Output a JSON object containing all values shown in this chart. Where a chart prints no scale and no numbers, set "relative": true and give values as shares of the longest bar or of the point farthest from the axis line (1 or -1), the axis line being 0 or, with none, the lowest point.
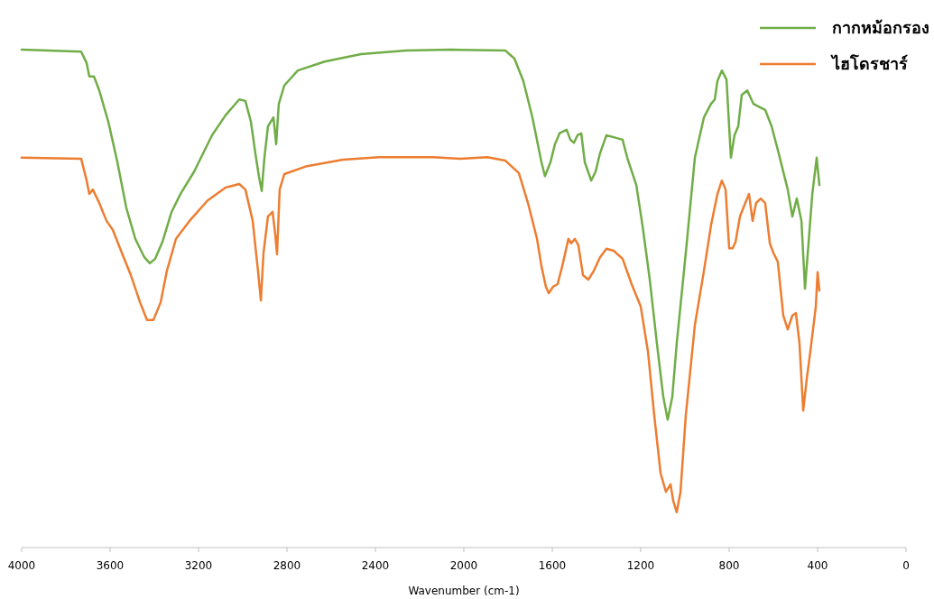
{
  "chart_data": {
    "type": "line",
    "relative": true,
    "xlabel": "Wavenumber (cm-1)",
    "xlim": [
      4000,
      0
    ],
    "xticks": [
      4000,
      3600,
      3200,
      2800,
      2400,
      2000,
      1600,
      1200,
      800,
      400,
      0
    ],
    "grid": false,
    "legend": "top right",
    "marker": "none",
    "line_style": "solid",
    "series": [
      {
        "name": "กากหม้อกรอง",
        "color": "#70ad47",
        "x": [
          4000,
          3731,
          3706,
          3694,
          3673,
          3649,
          3608,
          3567,
          3527,
          3486,
          3445,
          3420,
          3396,
          3363,
          3322,
          3282,
          3220,
          3139,
          3078,
          3016,
          2988,
          2963,
          2943,
          2927,
          2914,
          2902,
          2886,
          2861,
          2849,
          2837,
          2812,
          2751,
          2629,
          2465,
          2261,
          2057,
          1812,
          1771,
          1731,
          1690,
          1649,
          1633,
          1608,
          1588,
          1567,
          1535,
          1518,
          1502,
          1486,
          1469,
          1453,
          1424,
          1404,
          1384,
          1355,
          1322,
          1282,
          1261,
          1220,
          1192,
          1159,
          1127,
          1098,
          1078,
          1057,
          1037,
          996,
          955,
          914,
          882,
          865,
          853,
          833,
          812,
          792,
          776,
          759,
          743,
          718,
          690,
          669,
          637,
          608,
          576,
          535,
          514,
          494,
          473,
          457,
          441,
          424,
          404,
          392
        ],
        "values": [
          1.0,
          0.996,
          0.973,
          0.946,
          0.946,
          0.918,
          0.855,
          0.774,
          0.683,
          0.62,
          0.583,
          0.571,
          0.58,
          0.614,
          0.674,
          0.71,
          0.755,
          0.828,
          0.868,
          0.9,
          0.897,
          0.855,
          0.792,
          0.746,
          0.716,
          0.783,
          0.846,
          0.864,
          0.81,
          0.891,
          0.928,
          0.958,
          0.976,
          0.991,
          0.998,
          1.0,
          0.998,
          0.982,
          0.937,
          0.864,
          0.774,
          0.746,
          0.774,
          0.81,
          0.832,
          0.839,
          0.819,
          0.813,
          0.828,
          0.832,
          0.774,
          0.737,
          0.755,
          0.792,
          0.828,
          0.824,
          0.819,
          0.783,
          0.728,
          0.647,
          0.538,
          0.411,
          0.303,
          0.257,
          0.303,
          0.411,
          0.592,
          0.783,
          0.864,
          0.891,
          0.9,
          0.937,
          0.958,
          0.94,
          0.783,
          0.828,
          0.846,
          0.909,
          0.918,
          0.891,
          0.886,
          0.879,
          0.846,
          0.792,
          0.719,
          0.665,
          0.701,
          0.656,
          0.52,
          0.611,
          0.71,
          0.783,
          0.728
        ]
      },
      {
        "name": "ไฮโดรชาร์",
        "color": "#ed7d31",
        "x": [
          4000,
          3731,
          3706,
          3694,
          3678,
          3649,
          3616,
          3588,
          3547,
          3506,
          3465,
          3433,
          3404,
          3371,
          3343,
          3302,
          3241,
          3159,
          3078,
          3016,
          2988,
          2955,
          2931,
          2918,
          2906,
          2886,
          2865,
          2853,
          2845,
          2833,
          2812,
          2710,
          2547,
          2384,
          2139,
          2016,
          1894,
          1812,
          1751,
          1710,
          1669,
          1649,
          1629,
          1616,
          1596,
          1576,
          1555,
          1527,
          1514,
          1498,
          1482,
          1461,
          1437,
          1412,
          1384,
          1355,
          1322,
          1282,
          1241,
          1200,
          1167,
          1139,
          1110,
          1086,
          1065,
          1053,
          1037,
          1020,
          996,
          955,
          914,
          882,
          853,
          833,
          816,
          800,
          784,
          771,
          751,
          727,
          710,
          694,
          678,
          657,
          637,
          616,
          600,
          580,
          555,
          535,
          514,
          498,
          482,
          465,
          449,
          433,
          408,
          400,
          392
        ],
        "values": [
          0.783,
          0.781,
          0.737,
          0.71,
          0.719,
          0.692,
          0.656,
          0.638,
          0.592,
          0.547,
          0.493,
          0.457,
          0.457,
          0.493,
          0.556,
          0.62,
          0.656,
          0.697,
          0.723,
          0.73,
          0.719,
          0.656,
          0.556,
          0.496,
          0.592,
          0.665,
          0.674,
          0.629,
          0.589,
          0.719,
          0.75,
          0.766,
          0.779,
          0.784,
          0.784,
          0.781,
          0.784,
          0.777,
          0.752,
          0.692,
          0.62,
          0.565,
          0.524,
          0.511,
          0.524,
          0.529,
          0.565,
          0.62,
          0.611,
          0.62,
          0.607,
          0.547,
          0.538,
          0.556,
          0.583,
          0.6,
          0.596,
          0.58,
          0.529,
          0.484,
          0.393,
          0.266,
          0.149,
          0.112,
          0.127,
          0.094,
          0.071,
          0.112,
          0.266,
          0.447,
          0.556,
          0.647,
          0.71,
          0.737,
          0.719,
          0.601,
          0.601,
          0.614,
          0.665,
          0.692,
          0.71,
          0.656,
          0.692,
          0.701,
          0.692,
          0.611,
          0.592,
          0.574,
          0.466,
          0.438,
          0.466,
          0.471,
          0.411,
          0.275,
          0.339,
          0.393,
          0.484,
          0.553,
          0.516
        ]
      }
    ]
  }
}
